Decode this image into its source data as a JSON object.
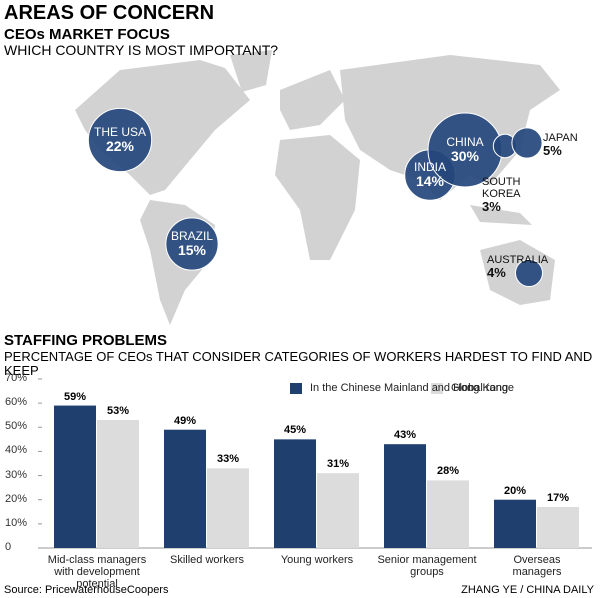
{
  "title": "AREAS OF CONCERN",
  "source": "Source: PricewaterhouseCoopers",
  "credit": "ZHANG YE / CHINA DAILY",
  "chart_data": [
    {
      "type": "bubble-map",
      "title": "CEOs MARKET FOCUS",
      "subtitle": "WHICH COUNTRY IS MOST IMPORTANT?",
      "categories": [
        "THE USA",
        "BRAZIL",
        "INDIA",
        "CHINA",
        "SOUTH\nKOREA",
        "JAPAN",
        "AUSTRALIA"
      ],
      "values": [
        22,
        15,
        14,
        30,
        3,
        5,
        4
      ],
      "value_labels": [
        "22%",
        "15%",
        "14%",
        "30%",
        "3%",
        "5%",
        "4%"
      ],
      "color": "#24477c"
    },
    {
      "type": "bar",
      "title": "STAFFING PROBLEMS",
      "subtitle": "PERCENTAGE OF CEOs THAT CONSIDER CATEGORIES OF WORKERS HARDEST TO FIND AND KEEP",
      "categories": [
        "Mid-class managers\nwith development potential",
        "Skilled workers",
        "Young workers",
        "Senior management\ngroups",
        "Overseas\nmanagers"
      ],
      "series": [
        {
          "name": "In the Chinese Mainland and Hong Kong",
          "color": "#1f3f6e",
          "values": [
            59,
            49,
            45,
            43,
            20
          ],
          "value_labels": [
            "59%",
            "49%",
            "45%",
            "43%",
            "20%"
          ]
        },
        {
          "name": "Global range",
          "color": "#dcdcdc",
          "values": [
            53,
            33,
            31,
            28,
            17
          ],
          "value_labels": [
            "53%",
            "33%",
            "31%",
            "28%",
            "17%"
          ]
        }
      ],
      "ylim": [
        0,
        70
      ],
      "yticks": [
        {
          "value": 0,
          "label": "0"
        },
        {
          "value": 10,
          "label": "10%"
        },
        {
          "value": 20,
          "label": "20%"
        },
        {
          "value": 30,
          "label": "30%"
        },
        {
          "value": 40,
          "label": "40%"
        },
        {
          "value": 50,
          "label": "50%"
        },
        {
          "value": 60,
          "label": "60%"
        },
        {
          "value": 70,
          "label": "70%"
        }
      ],
      "grid": false,
      "legend": "top-right"
    }
  ]
}
